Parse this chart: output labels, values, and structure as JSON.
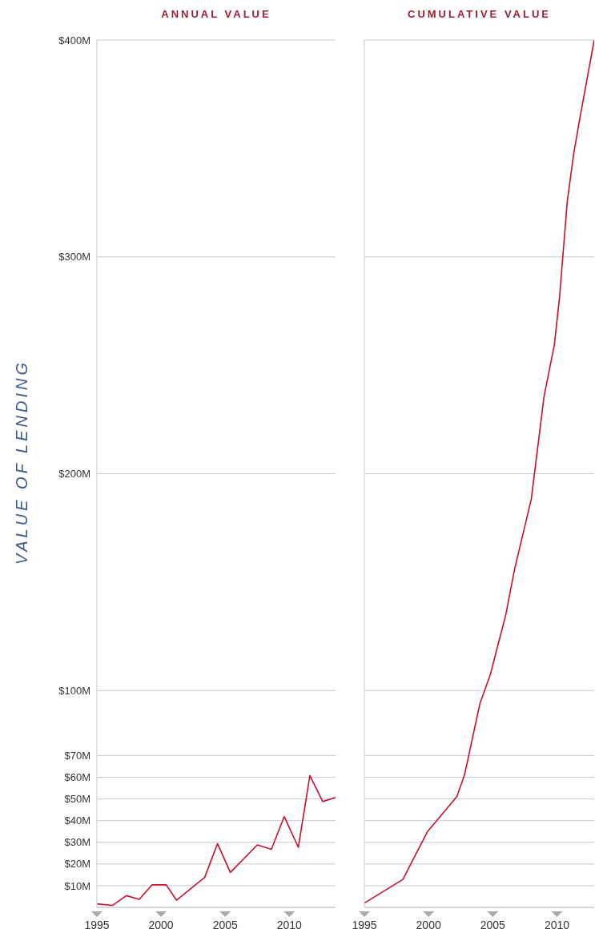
{
  "chart_data": [
    {
      "type": "line",
      "title": "ANNUAL VALUE",
      "ylabel": "VALUE OF LENDING",
      "series": [
        {
          "color": "#c8102e",
          "x": [
            1995.0,
            1996.2,
            1997.3,
            1998.3,
            1999.3,
            2000.4,
            2001.2,
            2003.4,
            2004.4,
            2005.4,
            2007.5,
            2008.6,
            2009.6,
            2010.7,
            2011.6,
            2012.6,
            2013.6
          ],
          "values": [
            1.6,
            0.9,
            5.4,
            3.7,
            10.4,
            10.4,
            3.3,
            13.8,
            29.4,
            16.1,
            28.8,
            26.8,
            41.9,
            27.7,
            60.8,
            48.8,
            50.7
          ]
        }
      ],
      "xlim": [
        1995,
        2013.6
      ],
      "xticks": [
        1995,
        2000,
        2005,
        2010
      ],
      "ylim": [
        0,
        400
      ],
      "yticks": [
        {
          "value": 10,
          "label": "$10M"
        },
        {
          "value": 20,
          "label": "$20M"
        },
        {
          "value": 30,
          "label": "$30M"
        },
        {
          "value": 40,
          "label": "$40M"
        },
        {
          "value": 50,
          "label": "$50M"
        },
        {
          "value": 60,
          "label": "$60M"
        },
        {
          "value": 70,
          "label": "$70M"
        },
        {
          "value": 100,
          "label": "$100M"
        },
        {
          "value": 200,
          "label": "$200M"
        },
        {
          "value": 300,
          "label": "$300M"
        },
        {
          "value": 400,
          "label": "$400M"
        }
      ],
      "grid": "y",
      "legend": false
    },
    {
      "type": "line",
      "title": "CUMULATIVE VALUE",
      "series": [
        {
          "color": "#c8102e",
          "x": [
            1995.0,
            1998.0,
            1999.9,
            2002.2,
            2002.8,
            2004.0,
            2004.8,
            2006.0,
            2006.7,
            2008.0,
            2009.0,
            2009.8,
            2010.2,
            2010.8,
            2011.3,
            2011.7,
            2012.9
          ],
          "values": [
            2.0,
            12.9,
            34.8,
            51.1,
            61.1,
            94.0,
            107.2,
            134.6,
            156,
            188.3,
            235.9,
            259.6,
            281.4,
            325.4,
            347.4,
            361.3,
            400
          ]
        }
      ],
      "xlim": [
        1995,
        2012.9
      ],
      "xticks": [
        1995,
        2000,
        2005,
        2010
      ],
      "ylim": [
        0,
        400
      ],
      "yticks": [
        10,
        20,
        30,
        40,
        50,
        60,
        70,
        100,
        200,
        300,
        400
      ],
      "grid": "y",
      "legend": false,
      "tick_labels": "x"
    }
  ]
}
